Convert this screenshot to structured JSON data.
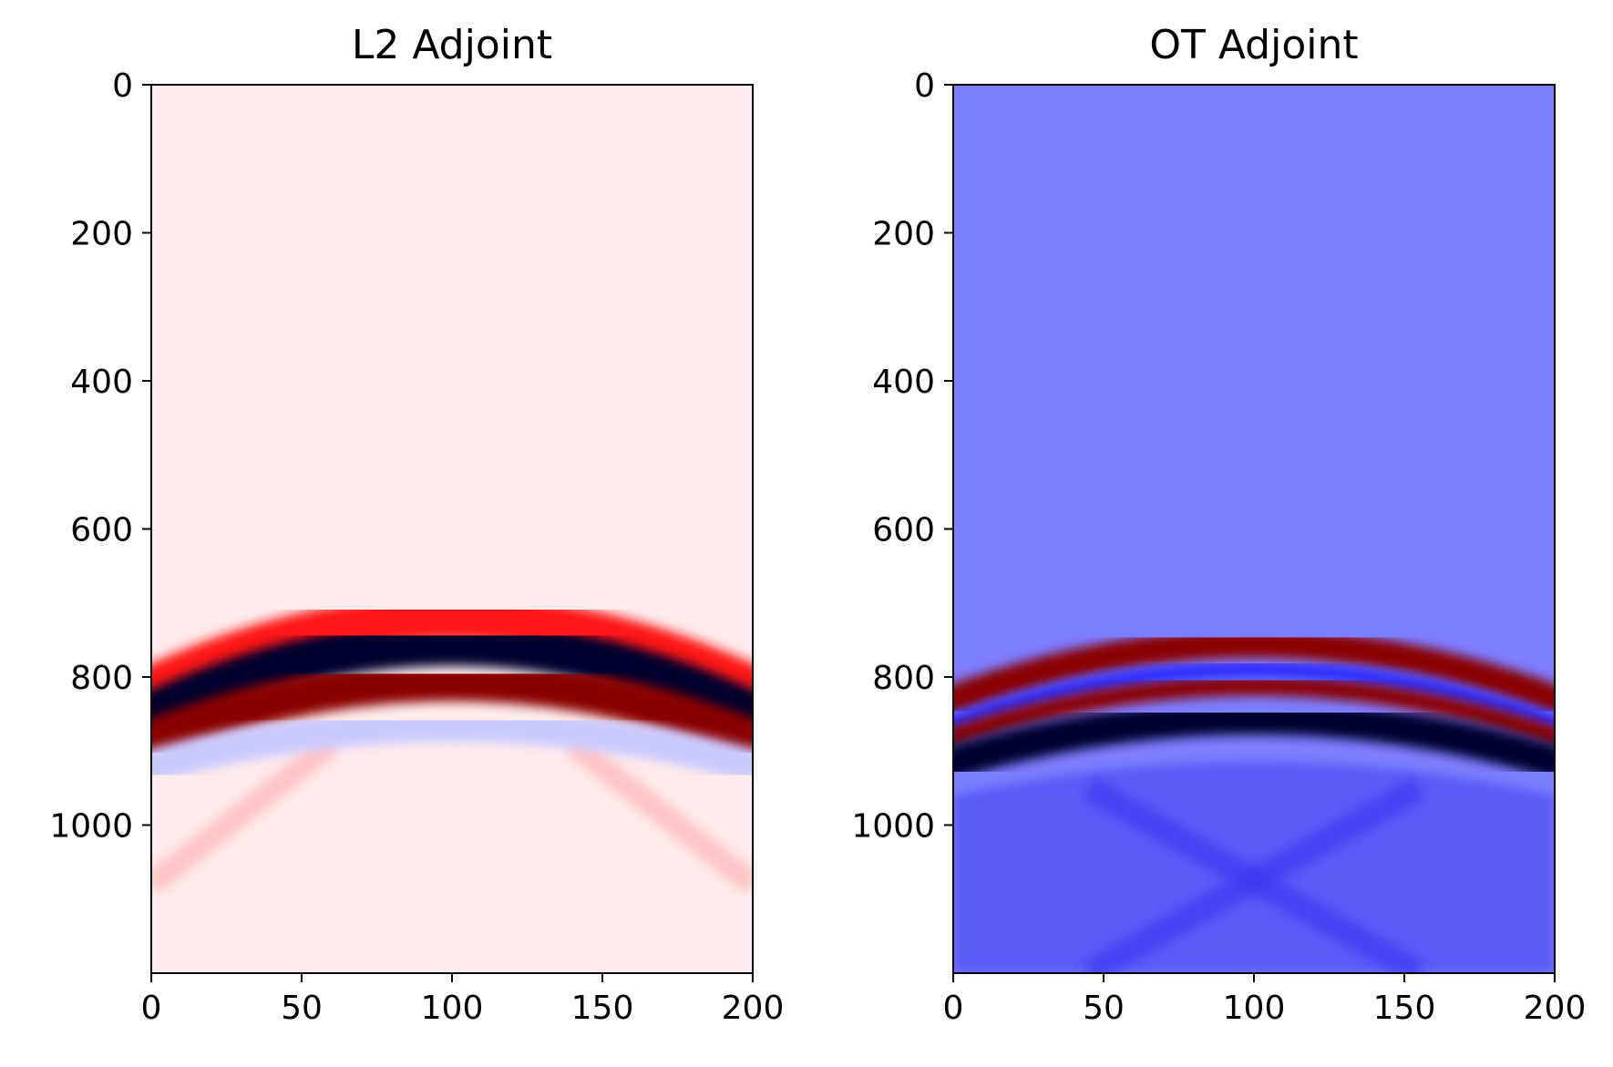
{
  "chart_data": [
    {
      "type": "heatmap",
      "title": "L2 Adjoint",
      "xlabel": "",
      "ylabel": "",
      "xlim": [
        0,
        200
      ],
      "ylim": [
        1200,
        0
      ],
      "x_ticks": [
        "0",
        "50",
        "100",
        "150",
        "200"
      ],
      "y_ticks": [
        "0",
        "200",
        "400",
        "600",
        "800",
        "1000"
      ],
      "colormap": "seismic",
      "background_color": "#ffebeb",
      "events": [
        {
          "apex_t": 720,
          "edge_t": 815,
          "width": 60,
          "polarity": "red"
        },
        {
          "apex_t": 755,
          "edge_t": 850,
          "width": 60,
          "polarity": "dark-blue"
        },
        {
          "apex_t": 805,
          "edge_t": 885,
          "width": 55,
          "polarity": "dark-red"
        },
        {
          "apex_t": 865,
          "edge_t": 920,
          "width": 45,
          "polarity": "light-blue"
        }
      ],
      "diffraction_tails": [
        {
          "from": [
            60,
            890
          ],
          "to": [
            0,
            1080
          ],
          "polarity": "light-red"
        },
        {
          "from": [
            140,
            890
          ],
          "to": [
            200,
            1080
          ],
          "polarity": "light-red"
        }
      ]
    },
    {
      "type": "heatmap",
      "title": "OT Adjoint",
      "xlabel": "",
      "ylabel": "",
      "xlim": [
        0,
        200
      ],
      "ylim": [
        1200,
        0
      ],
      "x_ticks": [
        "0",
        "50",
        "100",
        "150",
        "200"
      ],
      "y_ticks": [
        "0",
        "200",
        "400",
        "600",
        "800",
        "1000"
      ],
      "colormap": "seismic",
      "background_color": "#7d7dff",
      "events": [
        {
          "apex_t": 755,
          "edge_t": 830,
          "width": 38,
          "polarity": "dark-red"
        },
        {
          "apex_t": 790,
          "edge_t": 862,
          "width": 22,
          "polarity": "blue"
        },
        {
          "apex_t": 812,
          "edge_t": 880,
          "width": 26,
          "polarity": "dark-red"
        },
        {
          "apex_t": 855,
          "edge_t": 915,
          "width": 45,
          "polarity": "dark-blue"
        }
      ],
      "lower_region": {
        "top_t": 900,
        "color": "#3f3ff0"
      }
    }
  ]
}
